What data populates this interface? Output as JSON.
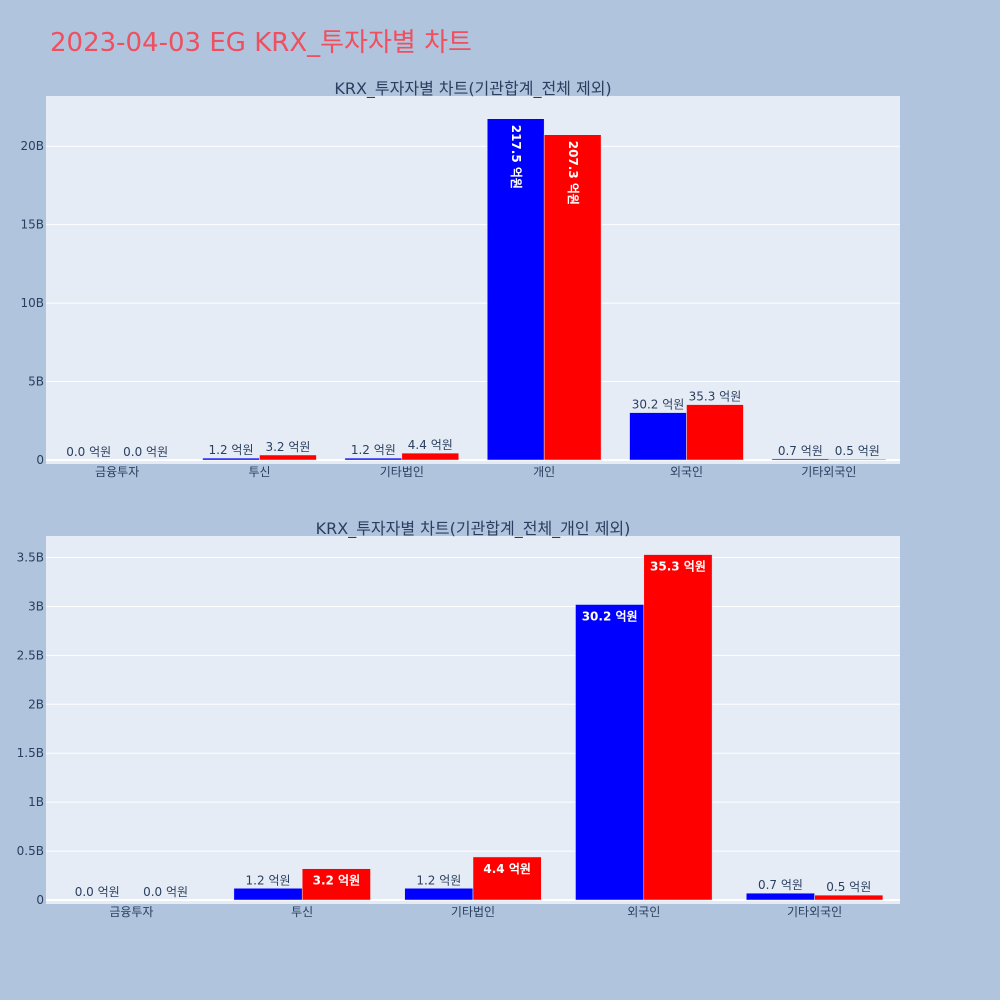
{
  "title": "2023-04-03 EG KRX_투자자별 차트",
  "colors": {
    "background": "#b0c4de",
    "plot_bg": "#e5ecf6",
    "title": "#ef4f5f",
    "series_buy": "#0000ff",
    "series_sell": "#ff0000",
    "text": "#2a3f5f"
  },
  "chart_data": [
    {
      "type": "bar",
      "title": "KRX_투자자별 차트(기관합계_전체 제외)",
      "categories": [
        "금융투자",
        "투신",
        "기타법인",
        "개인",
        "외국인",
        "기타외국인"
      ],
      "series": [
        {
          "color": "#0000ff",
          "values": [
            0.0,
            0.12,
            0.12,
            21.75,
            3.02,
            0.07
          ],
          "labels": [
            "0.0 억원",
            "1.2 억원",
            "1.2 억원",
            "217.5 억원",
            "30.2 억원",
            "0.7 억원"
          ]
        },
        {
          "color": "#ff0000",
          "values": [
            0.0,
            0.32,
            0.44,
            20.73,
            3.53,
            0.05
          ],
          "labels": [
            "0.0 억원",
            "3.2 억원",
            "4.4 억원",
            "207.3 억원",
            "35.3 억원",
            "0.5 억원"
          ]
        }
      ],
      "value_unit": "B",
      "ylim": [
        0,
        23.2
      ],
      "yticks": [
        0,
        5,
        10,
        15,
        20
      ],
      "ytick_labels": [
        "0",
        "5B",
        "10B",
        "15B",
        "20B"
      ],
      "grid": true
    },
    {
      "type": "bar",
      "title": "KRX_투자자별 차트(기관합계_전체_개인 제외)",
      "categories": [
        "금융투자",
        "투신",
        "기타법인",
        "외국인",
        "기타외국인"
      ],
      "series": [
        {
          "color": "#0000ff",
          "values": [
            0.0,
            0.12,
            0.12,
            3.02,
            0.07
          ],
          "labels": [
            "0.0 억원",
            "1.2 억원",
            "1.2 억원",
            "30.2 억원",
            "0.7 억원"
          ]
        },
        {
          "color": "#ff0000",
          "values": [
            0.0,
            0.32,
            0.44,
            3.53,
            0.05
          ],
          "labels": [
            "0.0 억원",
            "3.2 억원",
            "4.4 억원",
            "35.3 억원",
            "0.5 억원"
          ]
        }
      ],
      "value_unit": "B",
      "ylim": [
        0,
        3.72
      ],
      "yticks": [
        0,
        0.5,
        1,
        1.5,
        2,
        2.5,
        3,
        3.5
      ],
      "ytick_labels": [
        "0",
        "0.5B",
        "1B",
        "1.5B",
        "2B",
        "2.5B",
        "3B",
        "3.5B"
      ],
      "grid": true
    }
  ]
}
